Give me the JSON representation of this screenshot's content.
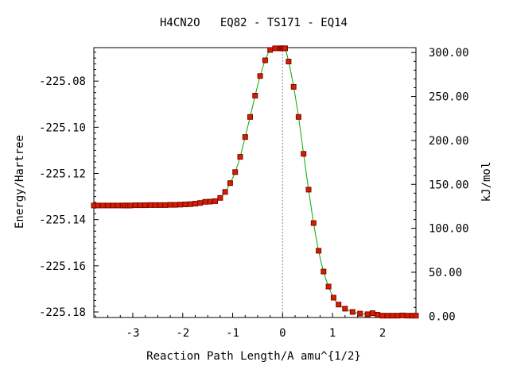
{
  "chart_data": {
    "type": "line",
    "title": "H4CN2O   EQ82 - TS171 - EQ14",
    "xlabel": "Reaction Path Length/A amu^{1/2}",
    "ylabel": "Energy/Hartree",
    "y2label": "kJ/mol",
    "xlim": [
      -3.78,
      2.67
    ],
    "ylim": [
      -225.1824,
      -225.0655
    ],
    "y2lim": [
      -1.5,
      305.6
    ],
    "xticks": [
      -3,
      -2,
      -1,
      0,
      1,
      2
    ],
    "xtick_labels": [
      "-3",
      "-2",
      "-1",
      "0",
      "1",
      "2"
    ],
    "yticks": [
      -225.08,
      -225.1,
      -225.12,
      -225.14,
      -225.16,
      -225.18
    ],
    "ytick_labels": [
      "-225.08",
      "-225.10",
      "-225.12",
      "-225.14",
      "-225.16",
      "-225.18"
    ],
    "y2ticks": [
      300,
      250,
      200,
      150,
      100,
      50,
      0
    ],
    "y2tick_labels": [
      "300.00",
      "250.00",
      "200.00",
      "150.00",
      "100.00",
      "50.00",
      "0.00"
    ],
    "grid": false,
    "ts_marker_x": 0,
    "line_color": "#00aa00",
    "marker_color": "#cc2200",
    "marker_edge_color": "#8b0000",
    "marker_x": [
      -3.78,
      -3.7,
      -3.6,
      -3.5,
      -3.4,
      -3.3,
      -3.2,
      -3.15,
      -3.1,
      -3.05,
      -2.95,
      -2.85,
      -2.75,
      -2.65,
      -2.55,
      -2.45,
      -2.35,
      -2.25,
      -2.15,
      -2.05,
      -1.95,
      -1.85,
      -1.75,
      -1.65,
      -1.55,
      -1.45,
      -1.35,
      -1.25,
      -1.15,
      -1.05,
      -0.95,
      -0.85,
      -0.75,
      -0.65,
      -0.55,
      -0.45,
      -0.35,
      -0.25,
      -0.15,
      -0.05,
      -0.02,
      0.0,
      0.02,
      0.05,
      0.12,
      0.22,
      0.32,
      0.42,
      0.52,
      0.62,
      0.72,
      0.82,
      0.92,
      1.02,
      1.12,
      1.25,
      1.4,
      1.55,
      1.7,
      1.8,
      1.9,
      2.0,
      2.1,
      2.2,
      2.3,
      2.4,
      2.5,
      2.6,
      2.67
    ],
    "marker_y": [
      -225.1339,
      -225.1339,
      -225.1339,
      -225.1339,
      -225.1339,
      -225.1339,
      -225.1339,
      -225.1339,
      -225.1339,
      -225.1339,
      -225.1338,
      -225.1338,
      -225.1338,
      -225.1337,
      -225.1337,
      -225.1337,
      -225.1337,
      -225.1336,
      -225.1336,
      -225.1335,
      -225.1334,
      -225.1333,
      -225.1331,
      -225.1328,
      -225.1323,
      -225.1322,
      -225.132,
      -225.1306,
      -225.128,
      -225.1242,
      -225.1194,
      -225.1128,
      -225.1042,
      -225.0955,
      -225.0863,
      -225.0778,
      -225.071,
      -225.0665,
      -225.0658,
      -225.0658,
      -225.0658,
      -225.0658,
      -225.0658,
      -225.0658,
      -225.0715,
      -225.0825,
      -225.0955,
      -225.1115,
      -225.127,
      -225.1415,
      -225.1535,
      -225.1625,
      -225.169,
      -225.1738,
      -225.1768,
      -225.1786,
      -225.18,
      -225.1807,
      -225.181,
      -225.1805,
      -225.1812,
      -225.1816,
      -225.1816,
      -225.1816,
      -225.1816,
      -225.1815,
      -225.1816,
      -225.1816,
      -225.1816
    ]
  }
}
